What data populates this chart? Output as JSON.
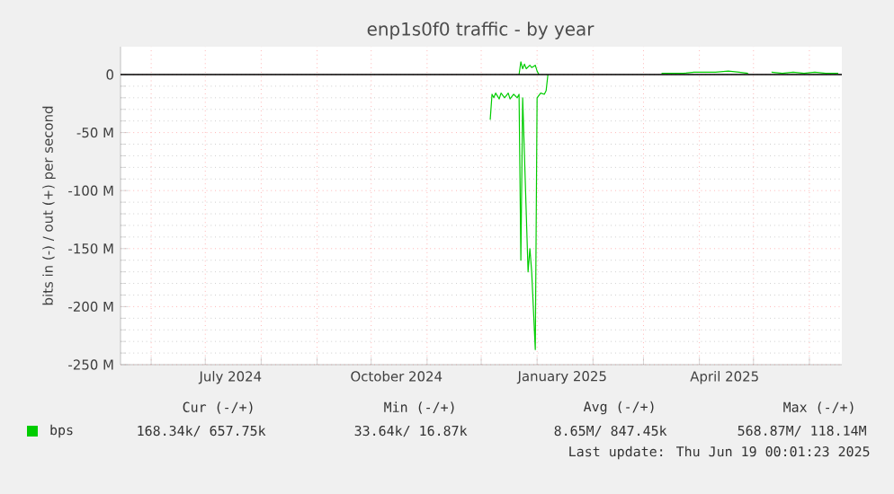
{
  "chart_data": {
    "type": "line",
    "title": "enp1s0f0 traffic - by year",
    "ylabel": "bits in (-) / out (+) per second",
    "xlim": [
      "2024-05-15",
      "2025-06-19"
    ],
    "xticks": [
      {
        "value": "2024-06-01",
        "label": null
      },
      {
        "value": "2024-07-01",
        "label": null
      },
      {
        "value": "2024-07-15",
        "label": "July 2024"
      },
      {
        "value": "2024-08-01",
        "label": null
      },
      {
        "value": "2024-09-01",
        "label": null
      },
      {
        "value": "2024-10-01",
        "label": null
      },
      {
        "value": "2024-10-15",
        "label": "October 2024"
      },
      {
        "value": "2024-11-01",
        "label": null
      },
      {
        "value": "2024-12-01",
        "label": null
      },
      {
        "value": "2025-01-01",
        "label": null
      },
      {
        "value": "2025-01-15",
        "label": "January 2025"
      },
      {
        "value": "2025-02-01",
        "label": null
      },
      {
        "value": "2025-03-01",
        "label": null
      },
      {
        "value": "2025-04-01",
        "label": null
      },
      {
        "value": "2025-04-15",
        "label": "April 2025"
      },
      {
        "value": "2025-05-01",
        "label": null
      },
      {
        "value": "2025-06-01",
        "label": null
      }
    ],
    "ylim": [
      -250,
      24
    ],
    "yticks": [
      {
        "value": 0,
        "label": "0"
      },
      {
        "value": -50,
        "label": "-50 M"
      },
      {
        "value": -100,
        "label": "-100 M"
      },
      {
        "value": -150,
        "label": "-150 M"
      },
      {
        "value": -200,
        "label": "-200 M"
      },
      {
        "value": -250,
        "label": "-250 M"
      }
    ],
    "grid": true,
    "legend": "bottom left",
    "marker": "none",
    "line_style": "solid",
    "ref_lines": [
      {
        "axis": "y",
        "value": 0,
        "color": "#000000"
      }
    ],
    "series": [
      {
        "name": "bps",
        "color": "#00cc00",
        "x": [
          "2024-12-06",
          "2024-12-07",
          "2024-12-08",
          "2024-12-09",
          "2024-12-11",
          "2024-12-12",
          "2024-12-14",
          "2024-12-16",
          "2024-12-17",
          "2024-12-19",
          "2024-12-21",
          "2024-12-22",
          "2024-12-23",
          "2024-12-24",
          "2024-12-27",
          "2024-12-28",
          "2024-12-29",
          "2024-12-31",
          "2025-01-01",
          "2025-01-03",
          "2025-01-05",
          "2025-01-06",
          "2025-01-07"
        ],
        "values": [
          -39,
          -17,
          -20,
          -16,
          -21,
          -16,
          -20,
          -16,
          -21,
          -17,
          -20,
          -17,
          -160,
          -20,
          -170,
          -150,
          -170,
          -237,
          -20,
          -16,
          -17,
          -14,
          0
        ]
      },
      {
        "color": "#00cc00",
        "x": [
          "2024-12-22",
          "2024-12-23",
          "2024-12-24",
          "2024-12-25",
          "2024-12-26",
          "2024-12-28",
          "2024-12-29",
          "2024-12-31",
          "2025-01-01",
          "2025-01-02",
          "2025-02-01",
          "2025-03-11",
          "2025-03-17",
          "2025-03-23",
          "2025-03-29",
          "2025-04-04",
          "2025-04-10",
          "2025-04-17",
          "2025-04-23",
          "2025-04-28",
          "2025-05-02",
          "2025-05-11",
          "2025-05-17",
          "2025-05-23",
          "2025-05-29",
          "2025-06-04",
          "2025-06-10",
          "2025-06-17"
        ],
        "values": [
          0,
          11,
          5,
          9,
          5,
          8,
          6,
          8,
          3,
          0,
          null,
          1,
          1,
          1,
          2,
          2,
          2,
          3,
          2,
          1,
          null,
          2,
          1,
          2,
          1,
          2,
          1,
          1
        ]
      }
    ],
    "annotations": [
      "Cur (-/+)",
      "Min (-/+)",
      "Avg (-/+)",
      "Max (-/+)",
      "168.34k/ 657.75k",
      "33.64k/  16.87k",
      "8.65M/ 847.45k",
      "568.87M/ 118.14M",
      "Last update: Thu Jun 19 00:01:23 2025"
    ]
  }
}
